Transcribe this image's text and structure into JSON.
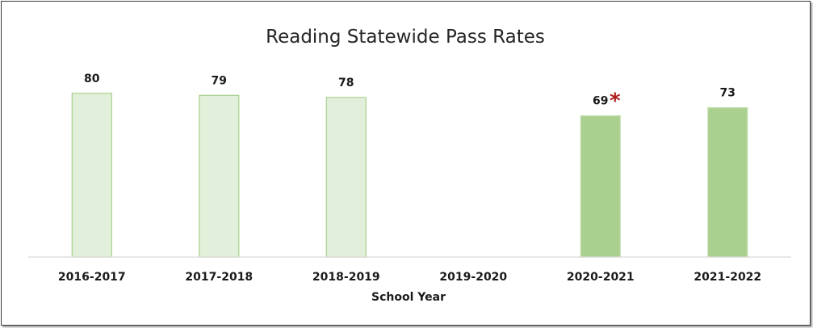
{
  "chart_data": {
    "type": "bar",
    "title": "Reading Statewide Pass Rates",
    "xlabel": "School Year",
    "ylabel": "",
    "ylim": [
      0,
      82
    ],
    "grid": false,
    "legend": "none",
    "categories": [
      "2016-2017",
      "2017-2018",
      "2018-2019",
      "2019-2020",
      "2020-2021",
      "2021-2022"
    ],
    "values": [
      80,
      79,
      78,
      null,
      69,
      73
    ],
    "annotations": [
      {
        "category": "2020-2021",
        "text": "*",
        "color": "#b01c1c"
      }
    ],
    "colors": {
      "light_fill": "#e2efda",
      "light_stroke": "#a9d08e",
      "dark_fill": "#a9d08e",
      "dark_stroke": "#c6e0b4",
      "axis": "#d9d9d9"
    },
    "bar_styles": [
      "light",
      "light",
      "light",
      "none",
      "dark",
      "dark"
    ]
  }
}
